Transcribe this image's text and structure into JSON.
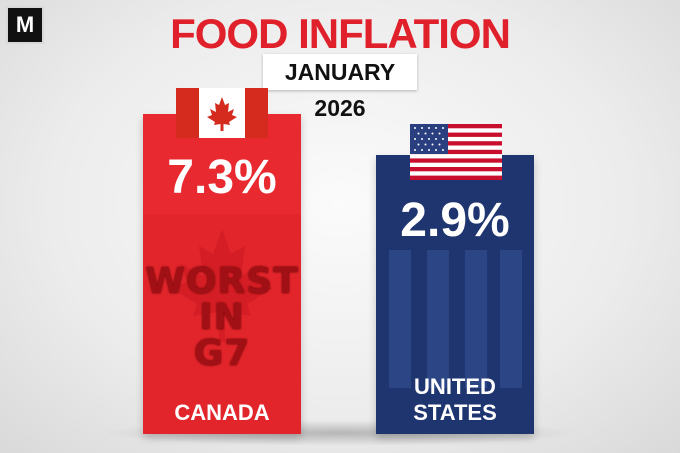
{
  "brand": {
    "logo_letter": "M"
  },
  "header": {
    "title": "FOOD INFLATION",
    "subtitle": "JANUARY 2026"
  },
  "colors": {
    "title": "#e0202a",
    "canada_bar": "#e2252b",
    "us_bar": "#1f3570"
  },
  "chart_data": {
    "type": "bar",
    "title": "FOOD INFLATION",
    "subtitle": "JANUARY 2026",
    "categories": [
      "CANADA",
      "UNITED STATES"
    ],
    "values": [
      7.3,
      2.9
    ],
    "value_labels": [
      "7.3%",
      "2.9%"
    ],
    "annotations": [
      "WORST IN G7"
    ],
    "flags": [
      "canada-flag-icon",
      "us-flag-icon"
    ],
    "grid": false,
    "legend": "none"
  }
}
